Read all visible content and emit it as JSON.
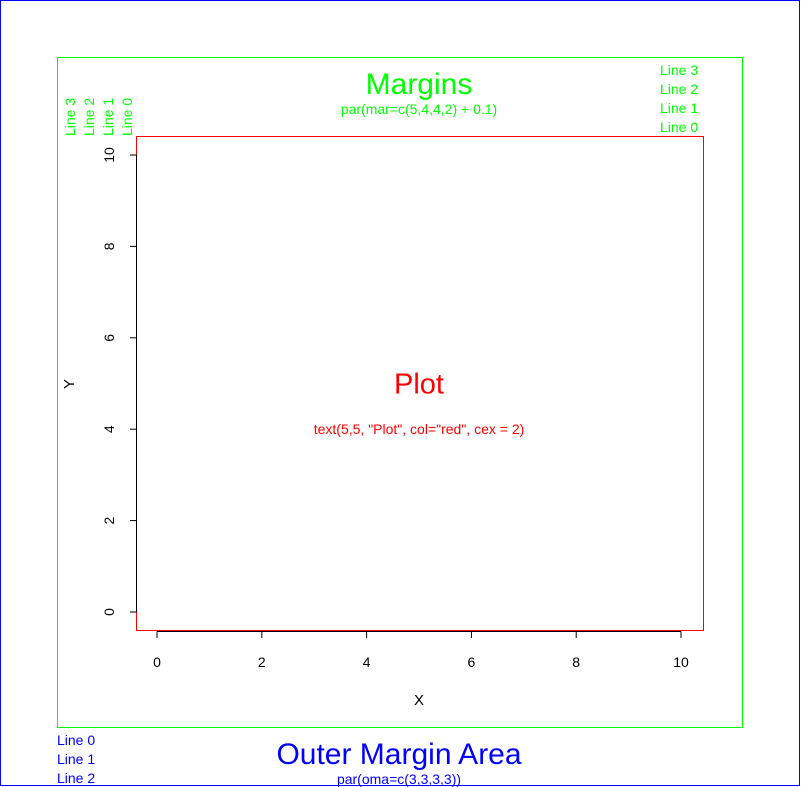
{
  "colors": {
    "outer_box": "#0000ff",
    "figure_box": "#00ff00",
    "plot_box": "#ff0000",
    "axis": "#000000",
    "background": "#ffffff"
  },
  "figure": {
    "title": "Margins",
    "subtitle": "par(mar=c(5,4,4,2) + 0.1)",
    "outer_title": "Outer Margin Area",
    "outer_subtitle": "par(oma=c(3,3,3,3))",
    "outer_lines": [
      "Line 0",
      "Line 1",
      "Line 2"
    ],
    "top_margin_lines": [
      "Line 3",
      "Line 2",
      "Line 1",
      "Line 0"
    ],
    "left_margin_lines": [
      "Line 3",
      "Line 2",
      "Line 1",
      "Line 0"
    ]
  },
  "chart_data": {
    "type": "scatter",
    "title": "",
    "xlabel": "X",
    "ylabel": "Y",
    "xlim": [
      0,
      10
    ],
    "ylim": [
      0,
      10
    ],
    "xticks": [
      0,
      2,
      4,
      6,
      8,
      10
    ],
    "yticks": [
      0,
      2,
      4,
      6,
      8,
      10
    ],
    "grid": false,
    "legend": "none",
    "series": [],
    "annotations": [
      {
        "x": 5,
        "y": 5,
        "text": "Plot",
        "color": "#ff0000",
        "cex": 2
      },
      {
        "x": 5,
        "y": 4,
        "text": "text(5,5, \"Plot\", col=\"red\", cex = 2)",
        "color": "#ff0000",
        "cex": 1
      }
    ]
  }
}
